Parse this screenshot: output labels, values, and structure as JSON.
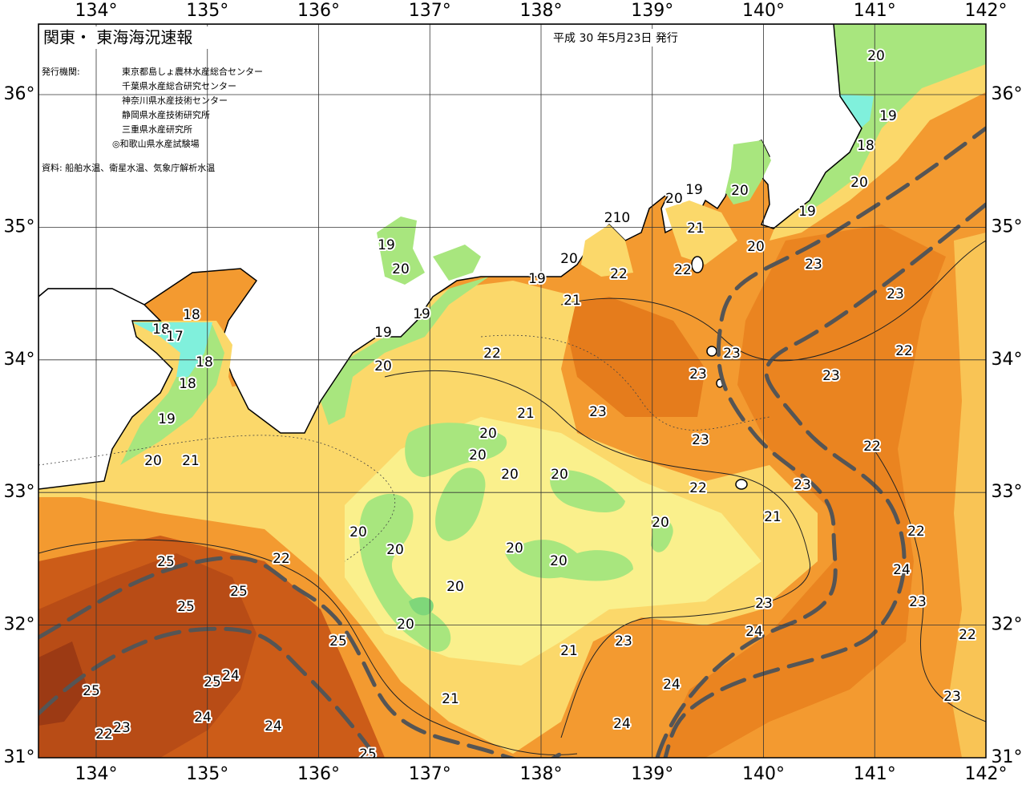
{
  "map": {
    "title": "関東・ 東海海況速報",
    "issued": "平成 30 年5月23日 発行",
    "issuers_label": "発行機関:",
    "issuers": [
      "東京都島しょ農林水産総合センター",
      "千葉県水産総合研究センター",
      "神奈川県水産技術センター",
      "静岡県水産技術研究所",
      "三重県水産研究所",
      "◎和歌山県水産試験場"
    ],
    "source": "資料: 船舶水温、衛星水温、気象庁解析水温",
    "lon_ticks": [
      {
        "value": 134,
        "label": "134°"
      },
      {
        "value": 135,
        "label": "135°"
      },
      {
        "value": 136,
        "label": "136°"
      },
      {
        "value": 137,
        "label": "137°"
      },
      {
        "value": 138,
        "label": "138°"
      },
      {
        "value": 139,
        "label": "139°"
      },
      {
        "value": 140,
        "label": "140°"
      },
      {
        "value": 141,
        "label": "141°"
      },
      {
        "value": 142,
        "label": "142°"
      }
    ],
    "lat_ticks": [
      {
        "value": 31,
        "label": "31°"
      },
      {
        "value": 32,
        "label": "32°"
      },
      {
        "value": 33,
        "label": "33°"
      },
      {
        "value": 34,
        "label": "34°"
      },
      {
        "value": 35,
        "label": "35°"
      },
      {
        "value": 36,
        "label": "36°"
      }
    ],
    "contour_labels": [
      20,
      19,
      18,
      20,
      19,
      20,
      20,
      19,
      20,
      21,
      22,
      "210",
      20,
      22,
      19,
      21,
      19,
      20,
      19,
      19,
      20,
      22,
      21,
      23,
      23,
      23,
      23,
      23,
      23,
      22,
      23,
      22,
      22,
      23,
      21,
      22,
      24,
      23,
      22,
      23,
      23,
      24,
      20,
      23,
      24,
      24,
      21,
      21,
      20,
      20,
      20,
      20,
      20,
      20,
      20,
      20,
      20,
      20,
      22,
      25,
      25,
      25,
      25,
      24,
      25,
      25,
      24,
      24,
      22,
      23,
      25,
      18,
      18,
      17,
      18,
      18,
      19,
      20,
      21
    ]
  }
}
